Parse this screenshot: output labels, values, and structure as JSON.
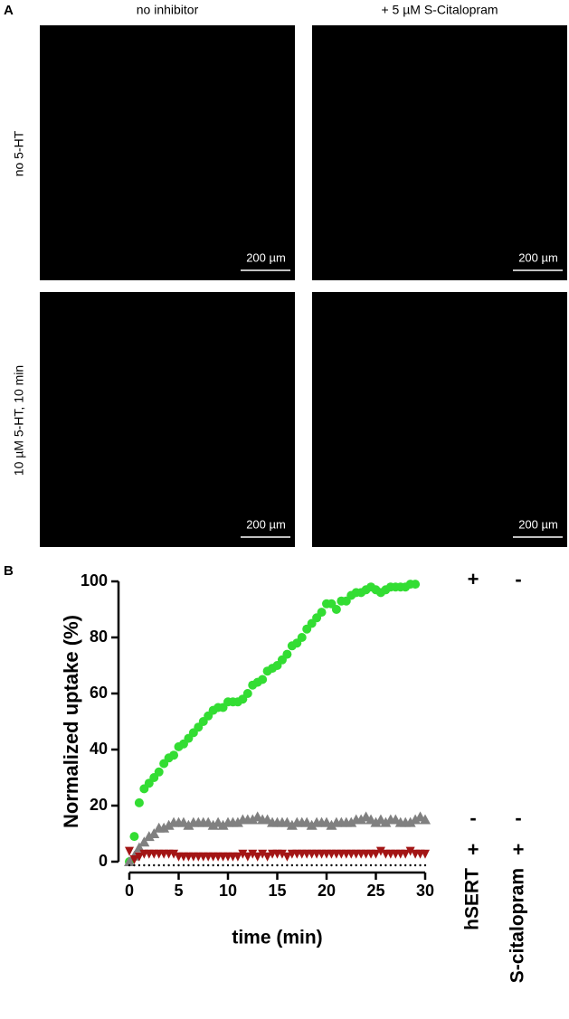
{
  "panel_a": {
    "label": "A",
    "columns": [
      "no inhibitor",
      "+ 5 µM S-Citalopram"
    ],
    "rows": [
      "no 5-HT",
      "10 µM 5-HT, 10 min"
    ],
    "scale_bar": "200 µm"
  },
  "chart_data": {
    "type": "scatter",
    "label": "B",
    "xlabel": "time (min)",
    "ylabel": "Normalized uptake (%)",
    "xlim": [
      0,
      30
    ],
    "xticks": [
      0,
      5,
      10,
      15,
      20,
      25,
      30
    ],
    "ylim": [
      0,
      100
    ],
    "yticks": [
      0,
      20,
      40,
      60,
      80,
      100
    ],
    "x": [
      0,
      0.5,
      1,
      1.5,
      2,
      2.5,
      3,
      3.5,
      4,
      4.5,
      5,
      5.5,
      6,
      6.5,
      7,
      7.5,
      8,
      8.5,
      9,
      9.5,
      10,
      10.5,
      11,
      11.5,
      12,
      12.5,
      13,
      13.5,
      14,
      14.5,
      15,
      15.5,
      16,
      16.5,
      17,
      17.5,
      18,
      18.5,
      19,
      19.5,
      20,
      20.5,
      21,
      21.5,
      22,
      22.5,
      23,
      23.5,
      24,
      24.5,
      25,
      25.5,
      26,
      26.5,
      27,
      27.5,
      28,
      28.5,
      29,
      29.5,
      30
    ],
    "series": [
      {
        "color": "#33dd33",
        "marker": "circle",
        "values": [
          0,
          9,
          21,
          26,
          28,
          30,
          32,
          35,
          37,
          38,
          41,
          42,
          44,
          46,
          48,
          50,
          52,
          54,
          55,
          55,
          57,
          57,
          57,
          58,
          60,
          63,
          64,
          65,
          68,
          69,
          70,
          72,
          74,
          77,
          78,
          80,
          83,
          85,
          87,
          89,
          92,
          92,
          90,
          93,
          93,
          95,
          96,
          96,
          97,
          98,
          97,
          96,
          97,
          98,
          98,
          98,
          98,
          99,
          99,
          null,
          null
        ]
      },
      {
        "color": "#808080",
        "marker": "triangle",
        "values": [
          0,
          2,
          5,
          7,
          9,
          10,
          12,
          12,
          13,
          14,
          14,
          14,
          13,
          14,
          14,
          14,
          14,
          13,
          14,
          13,
          14,
          14,
          14,
          15,
          15,
          15,
          16,
          15,
          15,
          14,
          14,
          14,
          14,
          13,
          14,
          14,
          14,
          13,
          14,
          14,
          14,
          13,
          14,
          14,
          14,
          14,
          15,
          15,
          16,
          15,
          14,
          15,
          14,
          15,
          15,
          14,
          14,
          14,
          15,
          16,
          15
        ]
      },
      {
        "color": "#a31515",
        "marker": "triangle-down",
        "values": [
          4,
          1,
          2,
          3,
          3,
          3,
          3,
          3,
          3,
          3,
          2,
          2,
          2,
          2,
          2,
          2,
          2,
          2,
          2,
          2,
          2,
          2,
          2,
          3,
          2,
          3,
          2,
          3,
          2,
          3,
          3,
          3,
          2,
          3,
          3,
          3,
          3,
          3,
          3,
          3,
          3,
          3,
          3,
          3,
          3,
          3,
          3,
          3,
          3,
          3,
          3,
          4,
          3,
          3,
          3,
          3,
          3,
          4,
          3,
          3,
          3
        ]
      },
      {
        "color": "#000000",
        "marker": "dot",
        "values": [
          0,
          0,
          0,
          0,
          0,
          0,
          0,
          0,
          0,
          0,
          0,
          0,
          0,
          0,
          0,
          0,
          0,
          0,
          0,
          0,
          0,
          0,
          0,
          0,
          0,
          0,
          0,
          0,
          0,
          0,
          0,
          0,
          0,
          0,
          0,
          0,
          0,
          0,
          0,
          0,
          0,
          0,
          0,
          0,
          0,
          0,
          0,
          0,
          0,
          0,
          0,
          0,
          0,
          0,
          0,
          0,
          0,
          0,
          0,
          0,
          0
        ]
      }
    ],
    "annotations": {
      "columns": [
        "hSERT",
        "S-citalopram"
      ],
      "rows": [
        [
          "+",
          "-"
        ],
        [
          "-",
          "-"
        ],
        [
          "+",
          "+"
        ]
      ]
    }
  }
}
